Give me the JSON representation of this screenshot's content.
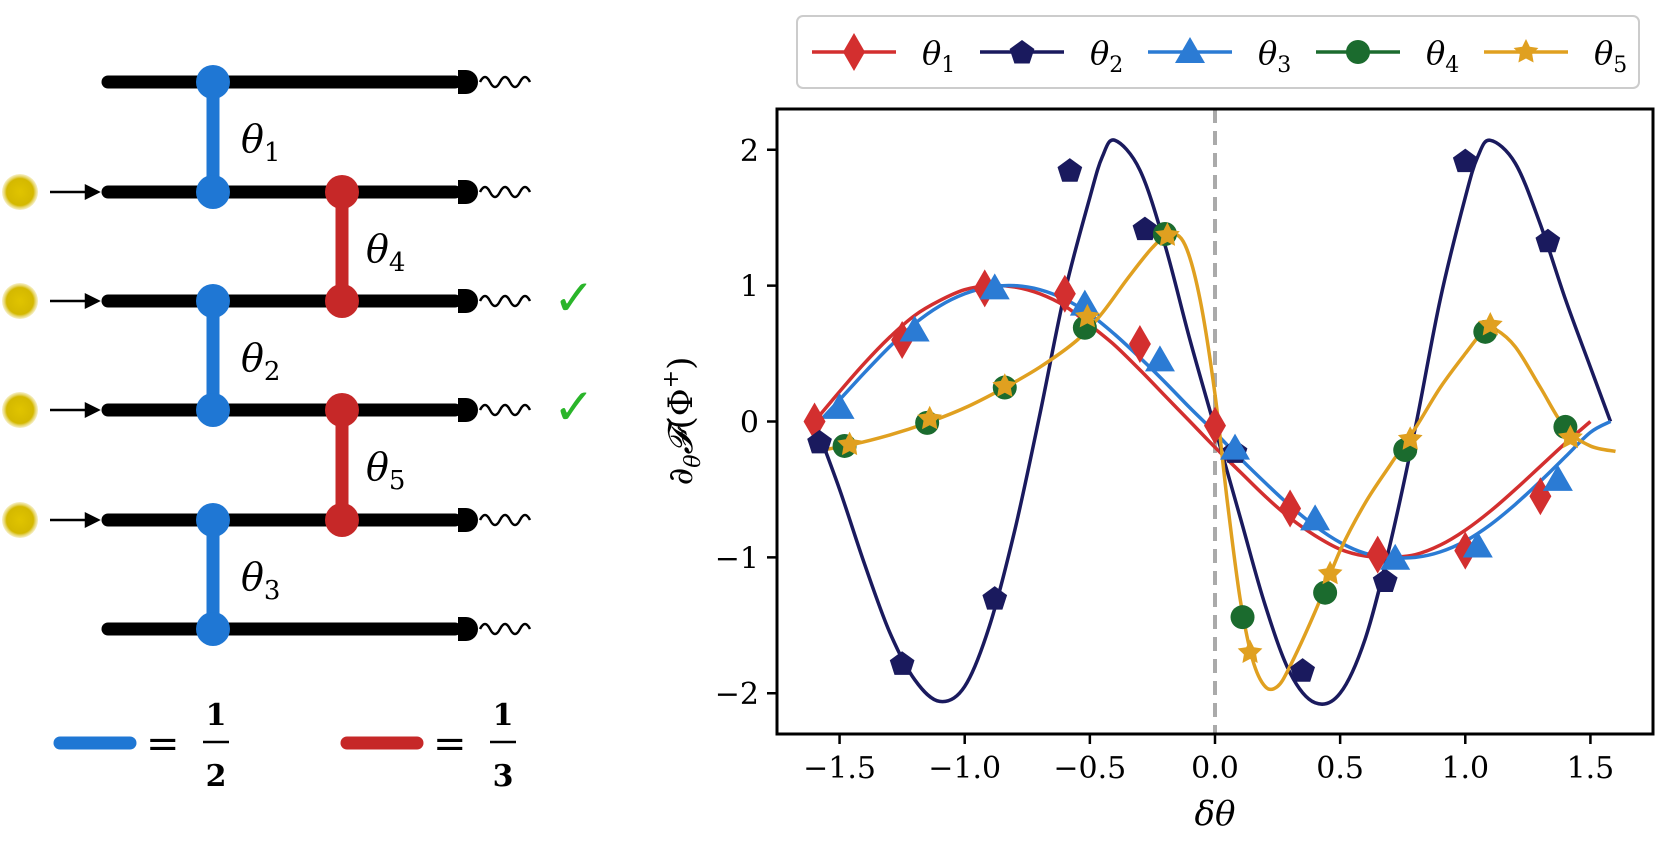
{
  "circuit": {
    "params": [
      {
        "name": "θ",
        "sub": "1",
        "color": "#1f77d4"
      },
      {
        "name": "θ",
        "sub": "4",
        "color": "#c62828"
      },
      {
        "name": "θ",
        "sub": "2",
        "color": "#1f77d4"
      },
      {
        "name": "θ",
        "sub": "5",
        "color": "#c62828"
      },
      {
        "name": "θ",
        "sub": "3",
        "color": "#1f77d4"
      }
    ],
    "checkmark": "✓",
    "key": {
      "blue": {
        "num": "1",
        "den": "2",
        "eq": "=",
        "color": "#1f77d4"
      },
      "red": {
        "num": "1",
        "den": "3",
        "eq": "=",
        "color": "#c62828"
      }
    },
    "colors": {
      "wire": "#000000",
      "source": "#d4b800",
      "check": "#2ab52a"
    }
  },
  "chart_data": {
    "type": "line",
    "xlabel": "δθ",
    "ylabel": "∂θ𝓕(Φ⁺)",
    "ylabel_parts": {
      "partial": "∂",
      "sub": "θ",
      "F": "𝓕",
      "arg": "(Φ",
      "sup": "+",
      "close": ")"
    },
    "xlim": [
      -1.75,
      1.75
    ],
    "ylim": [
      -2.3,
      2.3
    ],
    "xticks": [
      -1.5,
      -1.0,
      -0.5,
      0.0,
      0.5,
      1.0,
      1.5
    ],
    "xtick_labels": [
      "−1.5",
      "−1.0",
      "−0.5",
      "0.0",
      "0.5",
      "1.0",
      "1.5"
    ],
    "yticks": [
      -2,
      -1,
      0,
      1,
      2
    ],
    "ytick_labels": [
      "−2",
      "−1",
      "0",
      "1",
      "2"
    ],
    "grid": false,
    "legend": "top",
    "vline": {
      "x": 0.0,
      "color": "#aaaaaa",
      "style": "dashed"
    },
    "series": [
      {
        "name": "θ",
        "sub": "1",
        "color": "#d32f2f",
        "marker": "diamond",
        "curve": [
          [
            -1.6,
            0.0
          ],
          [
            -1.5,
            0.22
          ],
          [
            -1.4,
            0.43
          ],
          [
            -1.3,
            0.62
          ],
          [
            -1.2,
            0.78
          ],
          [
            -1.1,
            0.89
          ],
          [
            -1.0,
            0.97
          ],
          [
            -0.9,
            1.0
          ],
          [
            -0.8,
            0.99
          ],
          [
            -0.7,
            0.94
          ],
          [
            -0.6,
            0.85
          ],
          [
            -0.5,
            0.71
          ],
          [
            -0.4,
            0.56
          ],
          [
            -0.3,
            0.38
          ],
          [
            -0.2,
            0.19
          ],
          [
            -0.1,
            0.0
          ],
          [
            0.0,
            -0.19
          ],
          [
            0.1,
            -0.37
          ],
          [
            0.2,
            -0.55
          ],
          [
            0.3,
            -0.71
          ],
          [
            0.4,
            -0.84
          ],
          [
            0.5,
            -0.94
          ],
          [
            0.6,
            -0.99
          ],
          [
            0.7,
            -1.0
          ],
          [
            0.8,
            -0.98
          ],
          [
            0.9,
            -0.91
          ],
          [
            1.0,
            -0.8
          ],
          [
            1.1,
            -0.66
          ],
          [
            1.2,
            -0.5
          ],
          [
            1.3,
            -0.33
          ],
          [
            1.4,
            -0.16
          ],
          [
            1.5,
            0.0
          ]
        ],
        "points": [
          [
            -1.6,
            0.0
          ],
          [
            -1.25,
            0.6
          ],
          [
            -0.92,
            0.98
          ],
          [
            -0.6,
            0.94
          ],
          [
            -0.3,
            0.57
          ],
          [
            0.0,
            -0.03
          ],
          [
            0.3,
            -0.64
          ],
          [
            0.65,
            -0.98
          ],
          [
            1.0,
            -0.95
          ],
          [
            1.3,
            -0.55
          ]
        ]
      },
      {
        "name": "θ",
        "sub": "2",
        "color": "#1a1a5e",
        "marker": "pentagon",
        "curve": [
          [
            -1.6,
            0.0
          ],
          [
            -1.5,
            -0.5
          ],
          [
            -1.4,
            -1.05
          ],
          [
            -1.3,
            -1.55
          ],
          [
            -1.2,
            -1.9
          ],
          [
            -1.1,
            -2.06
          ],
          [
            -1.0,
            -1.95
          ],
          [
            -0.9,
            -1.5
          ],
          [
            -0.8,
            -0.8
          ],
          [
            -0.7,
            0.05
          ],
          [
            -0.6,
            0.95
          ],
          [
            -0.5,
            1.65
          ],
          [
            -0.45,
            1.95
          ],
          [
            -0.4,
            2.07
          ],
          [
            -0.3,
            1.85
          ],
          [
            -0.2,
            1.3
          ],
          [
            -0.1,
            0.6
          ],
          [
            0.0,
            -0.05
          ],
          [
            0.1,
            -0.7
          ],
          [
            0.2,
            -1.35
          ],
          [
            0.3,
            -1.85
          ],
          [
            0.4,
            -2.07
          ],
          [
            0.5,
            -2.0
          ],
          [
            0.6,
            -1.6
          ],
          [
            0.7,
            -0.9
          ],
          [
            0.8,
            -0.05
          ],
          [
            0.9,
            0.9
          ],
          [
            1.0,
            1.65
          ],
          [
            1.05,
            1.95
          ],
          [
            1.1,
            2.07
          ],
          [
            1.2,
            1.9
          ],
          [
            1.3,
            1.45
          ],
          [
            1.4,
            0.9
          ],
          [
            1.5,
            0.4
          ],
          [
            1.58,
            0.0
          ]
        ],
        "points": [
          [
            -1.58,
            -0.15
          ],
          [
            -1.25,
            -1.78
          ],
          [
            -0.88,
            -1.3
          ],
          [
            -0.58,
            1.85
          ],
          [
            -0.28,
            1.42
          ],
          [
            0.08,
            -0.22
          ],
          [
            0.35,
            -1.83
          ],
          [
            0.68,
            -1.17
          ],
          [
            1.0,
            1.92
          ],
          [
            1.33,
            1.33
          ]
        ]
      },
      {
        "name": "θ",
        "sub": "3",
        "color": "#2b7bd4",
        "marker": "triangle",
        "curve": [
          [
            -1.58,
            0.0
          ],
          [
            -1.5,
            0.16
          ],
          [
            -1.4,
            0.36
          ],
          [
            -1.3,
            0.55
          ],
          [
            -1.2,
            0.72
          ],
          [
            -1.1,
            0.85
          ],
          [
            -1.0,
            0.94
          ],
          [
            -0.9,
            0.99
          ],
          [
            -0.8,
            1.0
          ],
          [
            -0.7,
            0.97
          ],
          [
            -0.6,
            0.9
          ],
          [
            -0.5,
            0.79
          ],
          [
            -0.4,
            0.64
          ],
          [
            -0.3,
            0.47
          ],
          [
            -0.2,
            0.29
          ],
          [
            -0.1,
            0.1
          ],
          [
            0.0,
            -0.08
          ],
          [
            0.1,
            -0.27
          ],
          [
            0.2,
            -0.45
          ],
          [
            0.3,
            -0.62
          ],
          [
            0.4,
            -0.77
          ],
          [
            0.5,
            -0.89
          ],
          [
            0.6,
            -0.97
          ],
          [
            0.7,
            -1.0
          ],
          [
            0.8,
            -1.0
          ],
          [
            0.9,
            -0.96
          ],
          [
            1.0,
            -0.88
          ],
          [
            1.1,
            -0.76
          ],
          [
            1.2,
            -0.61
          ],
          [
            1.3,
            -0.44
          ],
          [
            1.4,
            -0.26
          ],
          [
            1.5,
            -0.08
          ],
          [
            1.58,
            0.0
          ]
        ],
        "points": [
          [
            -1.5,
            0.1
          ],
          [
            -1.2,
            0.67
          ],
          [
            -0.88,
            0.98
          ],
          [
            -0.52,
            0.86
          ],
          [
            -0.22,
            0.45
          ],
          [
            0.08,
            -0.2
          ],
          [
            0.4,
            -0.72
          ],
          [
            0.72,
            -1.01
          ],
          [
            1.05,
            -0.92
          ],
          [
            1.37,
            -0.43
          ]
        ]
      },
      {
        "name": "θ",
        "sub": "4",
        "color": "#1b6b2e",
        "marker": "circle",
        "curve": [],
        "points": [
          [
            -1.48,
            -0.18
          ],
          [
            -1.15,
            -0.01
          ],
          [
            -0.84,
            0.25
          ],
          [
            -0.52,
            0.69
          ],
          [
            -0.2,
            1.38
          ],
          [
            0.11,
            -1.44
          ],
          [
            0.44,
            -1.26
          ],
          [
            0.76,
            -0.21
          ],
          [
            1.08,
            0.66
          ],
          [
            1.4,
            -0.04
          ]
        ]
      },
      {
        "name": "θ",
        "sub": "5",
        "color": "#e0a020",
        "marker": "star",
        "curve": [
          [
            -1.6,
            -0.22
          ],
          [
            -1.45,
            -0.17
          ],
          [
            -1.3,
            -0.1
          ],
          [
            -1.15,
            -0.01
          ],
          [
            -1.0,
            0.1
          ],
          [
            -0.85,
            0.24
          ],
          [
            -0.7,
            0.4
          ],
          [
            -0.55,
            0.6
          ],
          [
            -0.45,
            0.8
          ],
          [
            -0.35,
            1.05
          ],
          [
            -0.25,
            1.28
          ],
          [
            -0.18,
            1.38
          ],
          [
            -0.12,
            1.3
          ],
          [
            -0.06,
            0.9
          ],
          [
            0.0,
            0.2
          ],
          [
            0.05,
            -0.6
          ],
          [
            0.1,
            -1.3
          ],
          [
            0.15,
            -1.75
          ],
          [
            0.2,
            -1.95
          ],
          [
            0.25,
            -1.95
          ],
          [
            0.3,
            -1.8
          ],
          [
            0.4,
            -1.4
          ],
          [
            0.5,
            -0.95
          ],
          [
            0.6,
            -0.6
          ],
          [
            0.7,
            -0.32
          ],
          [
            0.8,
            -0.05
          ],
          [
            0.9,
            0.25
          ],
          [
            1.0,
            0.5
          ],
          [
            1.08,
            0.68
          ],
          [
            1.12,
            0.68
          ],
          [
            1.2,
            0.55
          ],
          [
            1.3,
            0.25
          ],
          [
            1.4,
            -0.05
          ],
          [
            1.5,
            -0.18
          ],
          [
            1.6,
            -0.22
          ]
        ],
        "points": [
          [
            -1.46,
            -0.17
          ],
          [
            -1.14,
            0.02
          ],
          [
            -0.84,
            0.26
          ],
          [
            -0.51,
            0.77
          ],
          [
            -0.19,
            1.37
          ],
          [
            0.14,
            -1.7
          ],
          [
            0.46,
            -1.12
          ],
          [
            0.78,
            -0.13
          ],
          [
            1.1,
            0.71
          ],
          [
            1.42,
            -0.12
          ]
        ]
      }
    ]
  }
}
